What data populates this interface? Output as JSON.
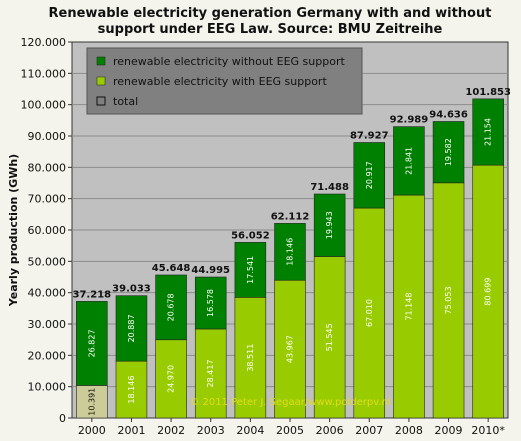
{
  "chart_data": {
    "type": "bar",
    "title": "Renewable electricity generation Germany with and without support under EEG Law. Source: BMU Zeitreihe",
    "ylabel": "Yearly production (GWh)",
    "xlabel": "",
    "ylim": [
      0,
      120000
    ],
    "yticks": [
      "0",
      "10.000",
      "20.000",
      "30.000",
      "40.000",
      "50.000",
      "60.000",
      "70.000",
      "80.000",
      "90.000",
      "100.000",
      "110.000",
      "120.000"
    ],
    "categories": [
      "2000",
      "2001",
      "2002",
      "2003",
      "2004",
      "2005",
      "2006",
      "2007",
      "2008",
      "2009",
      "2010*"
    ],
    "series": [
      {
        "name": "renewable electricity with EEG support",
        "color": "#99cc00",
        "values": [
          10391,
          18146,
          24970,
          28417,
          38511,
          43967,
          51545,
          67010,
          71148,
          75053,
          80699
        ],
        "labels": [
          "10.391",
          "18.146",
          "24.970",
          "28.417",
          "38.511",
          "43.967",
          "51.545",
          "67.010",
          "71.148",
          "75.053",
          "80.699"
        ]
      },
      {
        "name": "renewable electricity without EEG support",
        "color": "#008000",
        "values": [
          26827,
          20887,
          20678,
          16578,
          17541,
          18146,
          19943,
          20917,
          21841,
          19582,
          21154
        ],
        "labels": [
          "26.827",
          "20.887",
          "20.678",
          "16.578",
          "17.541",
          "18.146",
          "19.943",
          "20.917",
          "21.841",
          "19.582",
          "21.154"
        ]
      }
    ],
    "totals": {
      "name": "total",
      "values": [
        37218,
        39033,
        45648,
        44995,
        56052,
        62112,
        71488,
        87927,
        92989,
        94636,
        101853
      ],
      "labels": [
        "37.218",
        "39.033",
        "45.648",
        "44.995",
        "56.052",
        "62.112",
        "71.488",
        "87.927",
        "92.989",
        "94.636",
        "101.853"
      ]
    },
    "legend_position": "top-left",
    "grid": true,
    "background": "#c0c0c0",
    "annotation": "© 2011 Peter J. Segaar/www.polderpv.nl"
  }
}
